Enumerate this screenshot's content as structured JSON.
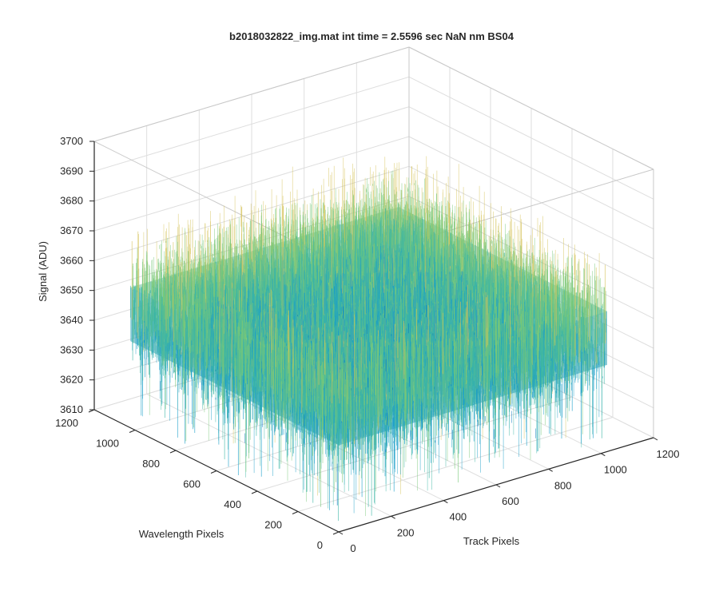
{
  "chart_data": {
    "type": "surface",
    "title": "b2018032822_img.mat int time = 2.5596 sec  NaN nm BS04",
    "xlabel": "Track Pixels",
    "ylabel": "Wavelength Pixels",
    "zlabel": "Signal (ADU)",
    "xlim": [
      0,
      1200
    ],
    "ylim": [
      0,
      1200
    ],
    "zlim": [
      3610,
      3700
    ],
    "x_ticks": [
      0,
      200,
      400,
      600,
      800,
      1000,
      1200
    ],
    "y_ticks": [
      0,
      200,
      400,
      600,
      800,
      1000,
      1200
    ],
    "z_ticks": [
      3610,
      3620,
      3630,
      3640,
      3650,
      3660,
      3670,
      3680,
      3690,
      3700
    ],
    "surface_extent": {
      "x": [
        1,
        1024
      ],
      "y": [
        1,
        1024
      ]
    },
    "surface_mean": 3648,
    "surface_spread": [
      3622,
      3685
    ],
    "colormap": [
      "#0072bd",
      "#1a9ec8",
      "#3cb6a5",
      "#78c878",
      "#d6c35a"
    ],
    "grid": true,
    "box": true
  }
}
